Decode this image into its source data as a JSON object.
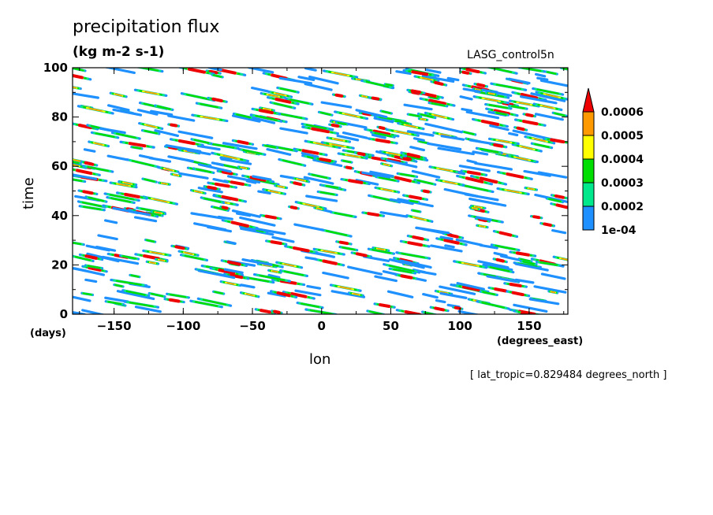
{
  "chart_data": {
    "type": "heatmap",
    "title": "precipitation flux",
    "units": "(kg m-2 s-1)",
    "run_label": "LASG_control5n",
    "xlabel": "lon",
    "ylabel": "time",
    "x_units": "(degrees_east)",
    "y_units": "(days)",
    "xlim": [
      -180,
      178
    ],
    "ylim": [
      0,
      100
    ],
    "x_ticks": [
      {
        "value": -150,
        "label": "−150"
      },
      {
        "value": -100,
        "label": "−100"
      },
      {
        "value": -50,
        "label": "−50"
      },
      {
        "value": 0,
        "label": "0"
      },
      {
        "value": 50,
        "label": "50"
      },
      {
        "value": 100,
        "label": "100"
      },
      {
        "value": 150,
        "label": "150"
      }
    ],
    "y_ticks": [
      {
        "value": 0,
        "label": "0"
      },
      {
        "value": 20,
        "label": "20"
      },
      {
        "value": 40,
        "label": "40"
      },
      {
        "value": 60,
        "label": "60"
      },
      {
        "value": 80,
        "label": "80"
      },
      {
        "value": 100,
        "label": "100"
      }
    ],
    "levels": [
      {
        "value": 0.0001,
        "label": "1e-04",
        "color": "#1e90ff"
      },
      {
        "value": 0.0002,
        "label": "0.0002",
        "color": "#00e88c"
      },
      {
        "value": 0.0003,
        "label": "0.0003",
        "color": "#00dd00"
      },
      {
        "value": 0.0004,
        "label": "0.0004",
        "color": "#ffff00"
      },
      {
        "value": 0.0005,
        "label": "0.0005",
        "color": "#ff9900"
      },
      {
        "value": 0.0006,
        "label": "0.0006",
        "color": "#ee0000"
      }
    ],
    "footnote": "[ lat_tropic=0.829484 degrees_north ]",
    "grid": false
  }
}
